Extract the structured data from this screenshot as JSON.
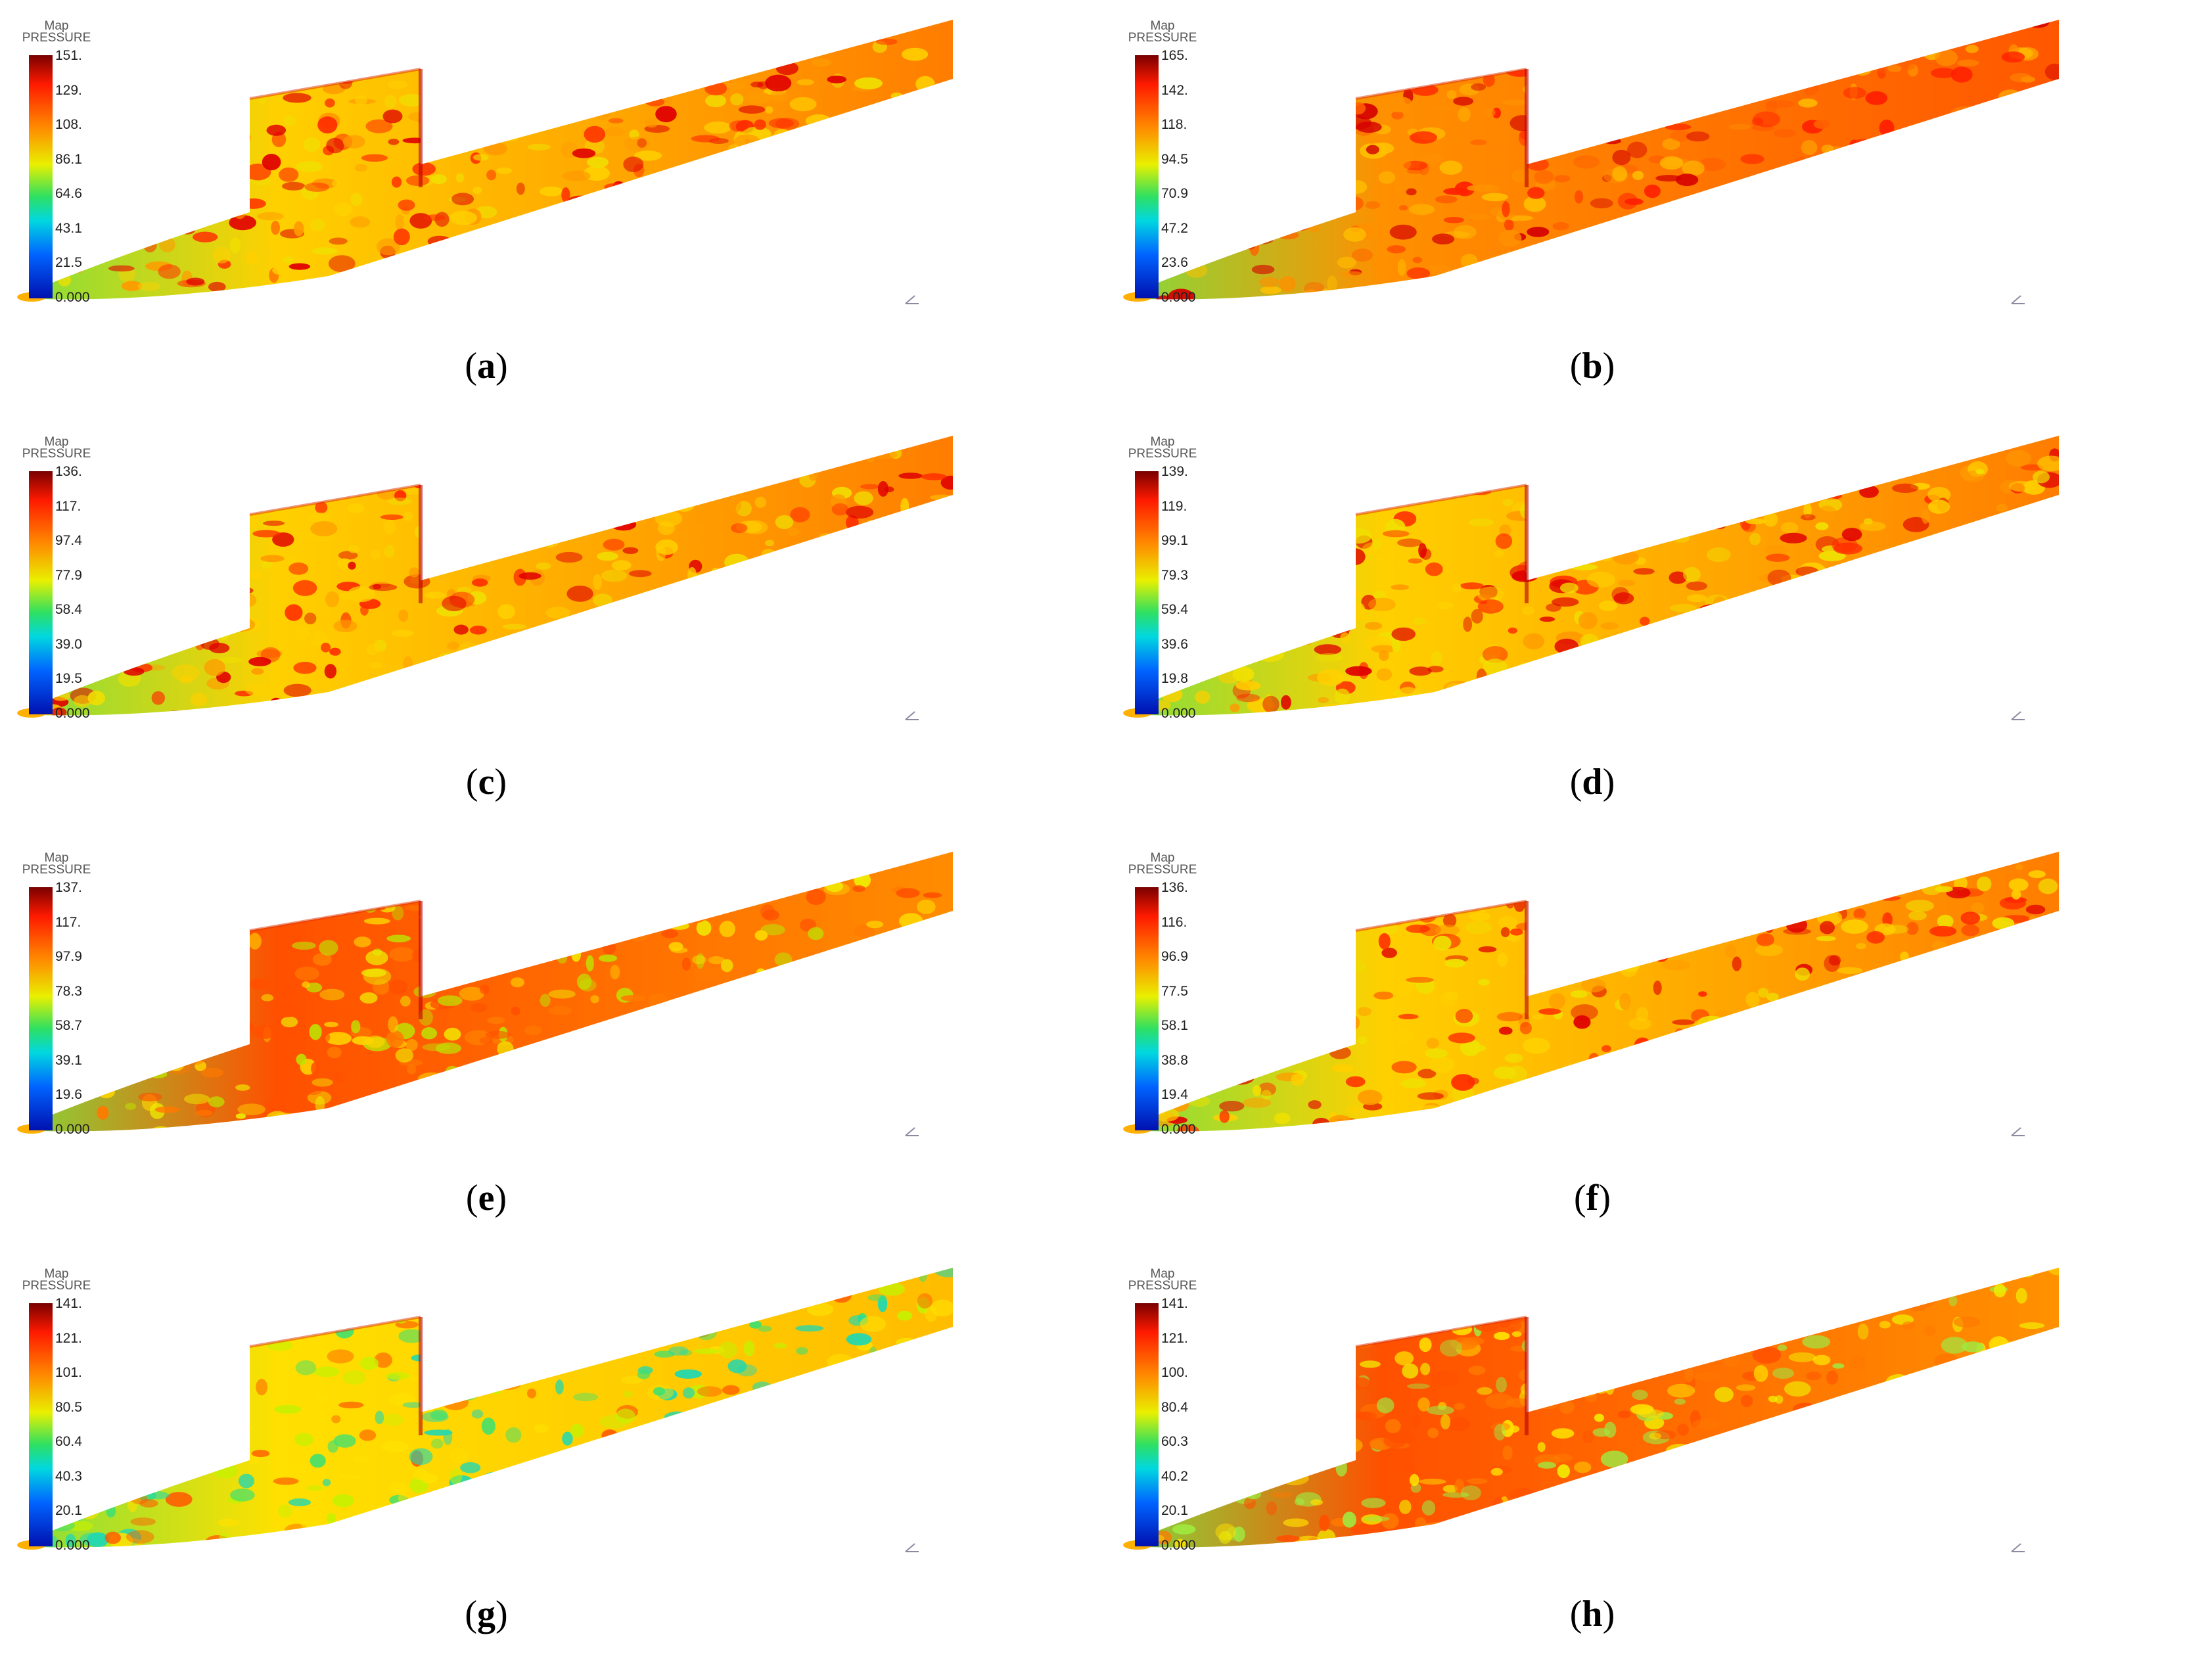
{
  "legend": {
    "title_line1": "Map",
    "title_line2": "PRESSURE"
  },
  "colors": {
    "high": "#c40000",
    "mid": "#f7c600",
    "low": "#0010b0"
  },
  "panels": [
    {
      "label": "a",
      "ticks": [
        "151.",
        "129.",
        "108.",
        "86.1",
        "64.6",
        "43.1",
        "21.5",
        "0.000"
      ],
      "palette": "hot"
    },
    {
      "label": "b",
      "ticks": [
        "165.",
        "142.",
        "118.",
        "94.5",
        "70.9",
        "47.2",
        "23.6",
        "0.000"
      ],
      "palette": "hotter"
    },
    {
      "label": "c",
      "ticks": [
        "136.",
        "117.",
        "97.4",
        "77.9",
        "58.4",
        "39.0",
        "19.5",
        "0.000"
      ],
      "palette": "hot"
    },
    {
      "label": "d",
      "ticks": [
        "139.",
        "119.",
        "99.1",
        "79.3",
        "59.4",
        "39.6",
        "19.8",
        "0.000"
      ],
      "palette": "hot"
    },
    {
      "label": "e",
      "ticks": [
        "137.",
        "117.",
        "97.9",
        "78.3",
        "58.7",
        "39.1",
        "19.6",
        "0.000"
      ],
      "palette": "warm"
    },
    {
      "label": "f",
      "ticks": [
        "136.",
        "116.",
        "96.9",
        "77.5",
        "58.1",
        "38.8",
        "19.4",
        "0.000"
      ],
      "palette": "hot"
    },
    {
      "label": "g",
      "ticks": [
        "141.",
        "121.",
        "101.",
        "80.5",
        "60.4",
        "40.3",
        "20.1",
        "0.000"
      ],
      "palette": "cool"
    },
    {
      "label": "h",
      "ticks": [
        "141.",
        "121.",
        "100.",
        "80.4",
        "60.3",
        "40.2",
        "20.1",
        "0.000"
      ],
      "palette": "mild"
    }
  ]
}
